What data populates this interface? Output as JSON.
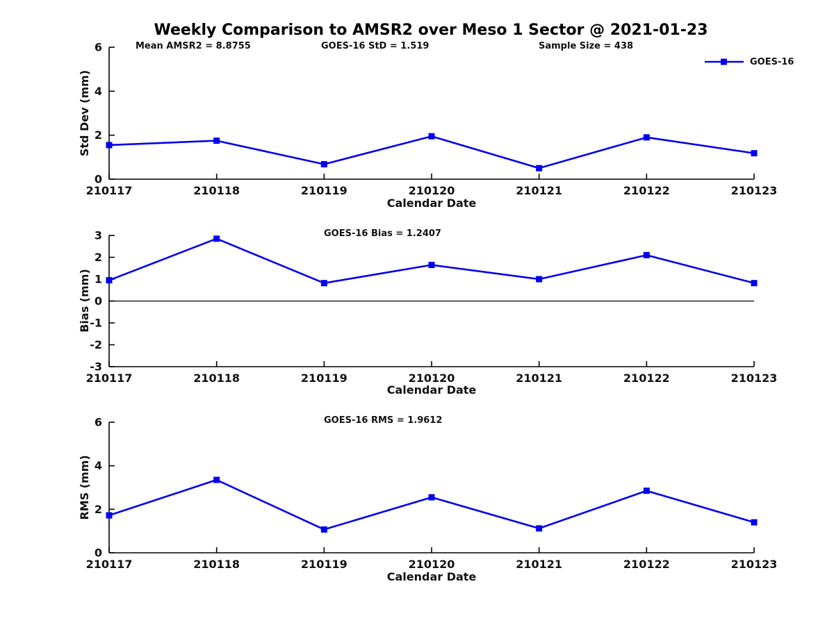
{
  "title": "Weekly Comparison to AMSR2 over Meso 1 Sector @ 2021-01-23",
  "colors": {
    "line": "#0000ee",
    "axis": "#000000",
    "text": "#111111"
  },
  "legend": {
    "label": "GOES-16"
  },
  "chart_data": [
    {
      "type": "line",
      "categories": [
        "210117",
        "210118",
        "210119",
        "210120",
        "210121",
        "210122",
        "210123"
      ],
      "series": [
        {
          "name": "GOES-16",
          "values": [
            1.55,
            1.75,
            0.68,
            1.95,
            0.5,
            1.9,
            1.18
          ]
        }
      ],
      "xlabel": "Calendar Date",
      "ylabel": "Std Dev (mm)",
      "ylim": [
        0,
        6
      ],
      "yticks": [
        0,
        2,
        4,
        6
      ],
      "grid": false,
      "zero_line": false,
      "legend_position": "top-right",
      "marker": "square",
      "annotations": [
        {
          "text": "Mean AMSR2 = 8.8755"
        },
        {
          "text": "GOES-16 StD = 1.519"
        },
        {
          "text": "Sample Size = 438"
        }
      ]
    },
    {
      "type": "line",
      "categories": [
        "210117",
        "210118",
        "210119",
        "210120",
        "210121",
        "210122",
        "210123"
      ],
      "series": [
        {
          "name": "GOES-16",
          "values": [
            0.95,
            2.85,
            0.82,
            1.65,
            1.0,
            2.1,
            0.82
          ]
        }
      ],
      "xlabel": "Calendar Date",
      "ylabel": "Bias (mm)",
      "ylim": [
        -3,
        3
      ],
      "yticks": [
        -3,
        -2,
        -1,
        0,
        1,
        2,
        3
      ],
      "grid": false,
      "zero_line": true,
      "marker": "square",
      "annotations": [
        {
          "text": "GOES-16 Bias  = 1.2407"
        }
      ]
    },
    {
      "type": "line",
      "categories": [
        "210117",
        "210118",
        "210119",
        "210120",
        "210121",
        "210122",
        "210123"
      ],
      "series": [
        {
          "name": "GOES-16",
          "values": [
            1.72,
            3.35,
            1.07,
            2.55,
            1.12,
            2.85,
            1.4
          ]
        }
      ],
      "xlabel": "Calendar Date",
      "ylabel": "RMS (mm)",
      "ylim": [
        0,
        6
      ],
      "yticks": [
        0,
        2,
        4,
        6
      ],
      "grid": false,
      "zero_line": false,
      "marker": "square",
      "annotations": [
        {
          "text": "GOES-16 RMS = 1.9612"
        }
      ]
    }
  ]
}
